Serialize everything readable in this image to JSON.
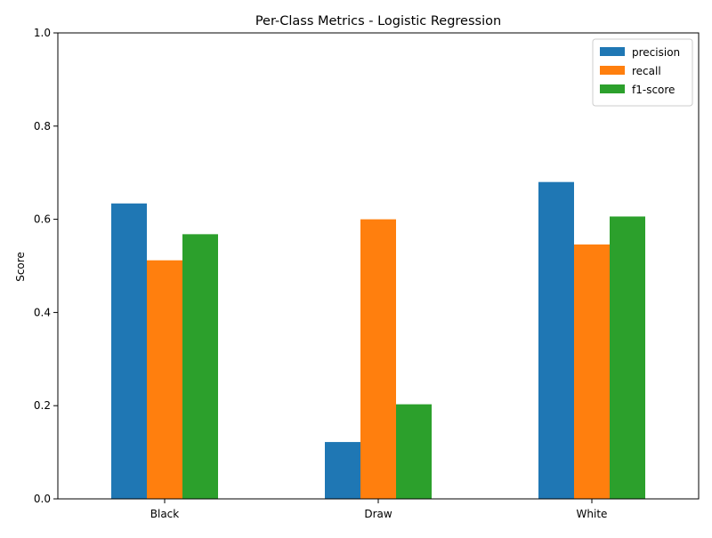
{
  "chart_data": {
    "type": "bar",
    "title": "Per-Class Metrics - Logistic Regression",
    "xlabel": "",
    "ylabel": "Score",
    "categories": [
      "Black",
      "Draw",
      "White"
    ],
    "series": [
      {
        "name": "precision",
        "color": "#1f77b4",
        "values": [
          0.634,
          0.122,
          0.68
        ]
      },
      {
        "name": "recall",
        "color": "#ff7f0e",
        "values": [
          0.512,
          0.6,
          0.546
        ]
      },
      {
        "name": "f1-score",
        "color": "#2ca02c",
        "values": [
          0.568,
          0.203,
          0.606
        ]
      }
    ],
    "ylim": [
      0,
      1.0
    ],
    "yticks": [
      "0.0",
      "0.2",
      "0.4",
      "0.6",
      "0.8",
      "1.0"
    ],
    "grid": false,
    "legend_position": "top-right"
  }
}
